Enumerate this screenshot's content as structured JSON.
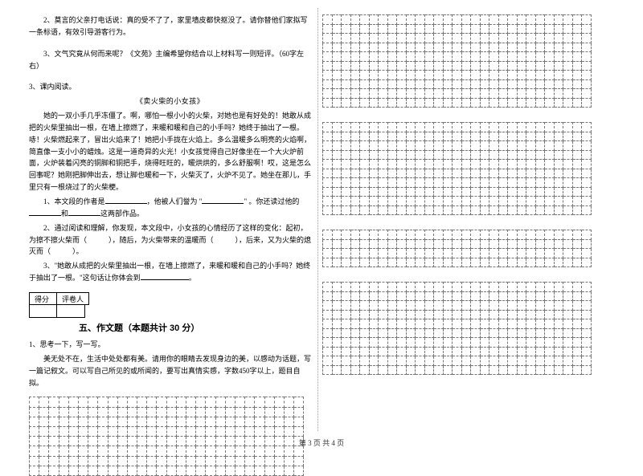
{
  "left": {
    "p2": "2、莫言的父亲打电话说：真的受不了了，家里墙皮都快抠没了。请你替他们家拟写一条标语，有效引导游客行为。",
    "p3": "3、文气究竟从何而来呢？《文苑》主编希望你结合以上材料写一则短评。（60字左右）",
    "inClass": "3、课内阅读。",
    "storyTitle": "《卖火柴的小女孩》",
    "storyP1": "她的一双小手几乎冻僵了。啊，哪怕一根小小的火柴，对她也是有好处的！她敢从成把的火柴里抽出一根，在墙上擦燃了，来暖和暖和自己的小手吗？她终于抽出了一根。哧！火柴燃起来了，冒出火焰来了！她把小手拢在火焰上。多么温暖多么明亮的火焰啊，简直像一支小小的蜡烛。这是一道奇异的火光！小女孩觉得自己好像坐在一个大火炉前面，火炉装着闪亮的铜脚和铜把手，烧得旺旺的，暖烘烘的，多么舒服啊！哎，这是怎么回事呢？她刚把脚伸出去，想让脚也暖和一下，火柴灭了，火炉不见了。她坐在那儿，手里只有一根烧过了的火柴梗。",
    "q1a": "1、本文段的作者是",
    "q1b": "，他被人们誉为 \"",
    "q1c": "\" 。你还读过他的",
    "q1d": "和",
    "q1e": "这两部作品。",
    "q2a": "2、通过阅读和理解，你发现，本文段中，小女孩的心情经历了这样的变化：起初，为擦不擦火柴而（　　　），随后，为火柴带来的温暖而（　　　），后来，又为火柴的熄灭而（　　　）。",
    "q3text": "3、\"她敢从成把的火柴里抽出一根，在墙上擦燃了，来暖和暖和自己的小手吗？她终于抽出了一根。\"这句话让你体会到",
    "q3end": "。",
    "scoreLabel1": "得分",
    "scoreLabel2": "评卷人",
    "sectionTitle": "五、作文题（本题共计 30 分）",
    "essay1": "1、思考一下，写一写。",
    "essay2": "美无处不在，生活中处处都有美。请用你的眼睛去发现身边的美，以感动为话题，写一篇记叙文。可以写自己所见的或所闻的，要写出真情实感，字数450字以上，题目自拟。"
  },
  "footer": "第 3 页 共 4 页",
  "gridLeft": {
    "rows": 8,
    "cols": 28
  },
  "gridR1": {
    "rows": 10,
    "cols": 29
  },
  "gridR2": {
    "rows": 10,
    "cols": 29
  },
  "gridR3": {
    "rows": 4,
    "cols": 29
  },
  "gridR4": {
    "rows": 10,
    "cols": 29
  }
}
